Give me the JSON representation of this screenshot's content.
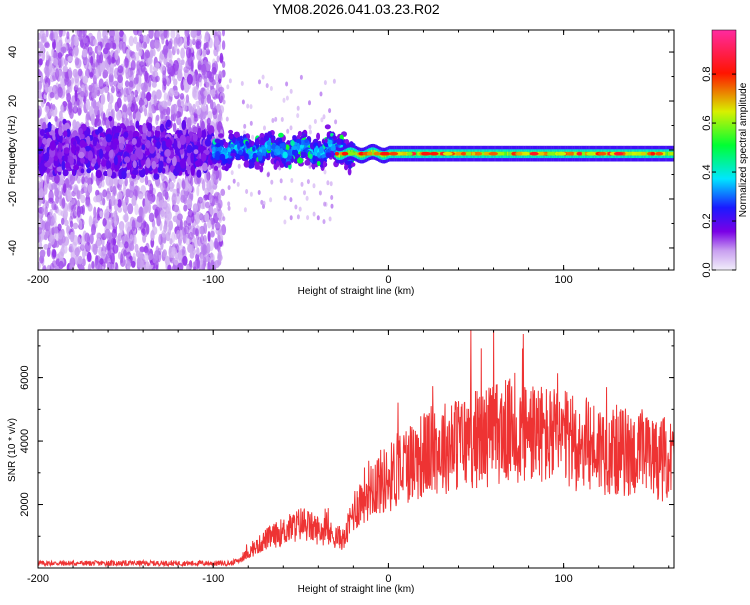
{
  "title": "YM08.2026.041.03.23.R02",
  "chart_data": [
    {
      "type": "heatmap",
      "name": "spectrogram",
      "xlabel": "Height of straight line (km)",
      "ylabel": "Frequency (Hz)",
      "xlim": [
        -200,
        163
      ],
      "ylim": [
        -49,
        49
      ],
      "xticks": [
        -200,
        -100,
        0,
        100
      ],
      "yticks": [
        -40,
        -20,
        0,
        20,
        40
      ],
      "x_tick_labels": [
        "-200",
        "-100",
        "0",
        "100"
      ],
      "y_tick_labels": [
        "-40",
        "-20",
        "0",
        "20",
        "40"
      ],
      "colorbar": {
        "label": "Normalized spectral amplitude",
        "range": [
          0,
          0.98
        ],
        "ticks": [
          0.0,
          0.2,
          0.4,
          0.6,
          0.8
        ],
        "tick_labels": [
          "0.0",
          "0.2",
          "0.4",
          "0.6",
          "0.8"
        ],
        "colormap": "rainbow (light violet to red)"
      },
      "features": {
        "noise_region_x": [
          -200,
          -100
        ],
        "noise_spread_hz": 49,
        "transition_region_x": [
          -100,
          -30
        ],
        "carrier_line_freq_hz": -1.5,
        "carrier_line_x": [
          -30,
          163
        ]
      }
    },
    {
      "type": "line",
      "name": "snr",
      "xlabel": "Height of straight line (km)",
      "ylabel": "SNR (10 * v/v)",
      "xlim": [
        -200,
        163
      ],
      "ylim": [
        0,
        7500
      ],
      "xticks": [
        -200,
        -100,
        0,
        100
      ],
      "yticks": [
        2000,
        4000,
        6000
      ],
      "x_tick_labels": [
        "-200",
        "-100",
        "0",
        "100"
      ],
      "y_tick_labels": [
        "2000",
        "4000",
        "6000"
      ],
      "series": [
        {
          "name": "SNR",
          "color": "#ee3333",
          "trend": {
            "x": [
              -200,
              -90,
              -85,
              -70,
              -50,
              -35,
              -25,
              -20,
              -10,
              0,
              10,
              25,
              45,
              65,
              80,
              95,
              110,
              130,
              150,
              163
            ],
            "y": [
              150,
              150,
              250,
              900,
              1400,
              1100,
              900,
              1800,
              2600,
              2800,
              3300,
              3700,
              4000,
              4300,
              4300,
              4100,
              3900,
              3700,
              3500,
              3400
            ]
          }
        }
      ]
    }
  ]
}
